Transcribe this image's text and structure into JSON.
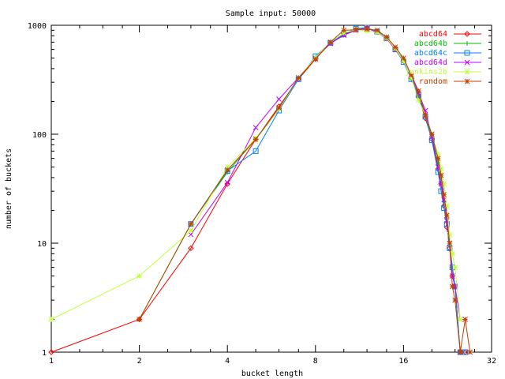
{
  "chart_data": {
    "type": "line",
    "title": "Sample input: 50000",
    "xlabel": "bucket length",
    "ylabel": "number of buckets",
    "x_scale": "log2",
    "y_scale": "log10",
    "xlim": [
      1,
      32
    ],
    "ylim": [
      1,
      1000
    ],
    "x_ticks": [
      1,
      2,
      4,
      8,
      16,
      32
    ],
    "y_ticks": [
      1,
      10,
      100,
      1000
    ],
    "x_tick_labels": [
      "1",
      "2",
      "4",
      "8",
      "16",
      "32"
    ],
    "y_tick_labels": [
      "1",
      "10",
      "100",
      "1000"
    ],
    "grid": false,
    "legend_position": "top-right",
    "series": [
      {
        "name": "abcd64",
        "color": "#ff0000",
        "marker": "diamond",
        "points": [
          [
            1,
            1
          ],
          [
            2,
            2
          ],
          [
            3,
            9
          ],
          [
            4,
            35
          ],
          [
            5,
            90
          ],
          [
            6,
            180
          ],
          [
            7,
            320
          ],
          [
            8,
            490
          ],
          [
            9,
            690
          ],
          [
            10,
            820
          ],
          [
            11,
            910
          ],
          [
            12,
            940
          ],
          [
            13,
            880
          ],
          [
            14,
            760
          ],
          [
            15,
            600
          ],
          [
            16,
            470
          ],
          [
            17,
            330
          ],
          [
            18,
            220
          ],
          [
            19,
            140
          ],
          [
            20,
            90
          ],
          [
            21,
            48
          ],
          [
            21.5,
            35
          ],
          [
            22,
            22
          ],
          [
            22.5,
            14
          ],
          [
            23,
            9
          ],
          [
            23.5,
            5
          ],
          [
            24,
            4
          ],
          [
            25,
            1
          ],
          [
            26,
            1
          ]
        ]
      },
      {
        "name": "abcd64b",
        "color": "#00c000",
        "marker": "plus",
        "points": [
          [
            2,
            2
          ],
          [
            3,
            15
          ],
          [
            4,
            45
          ],
          [
            5,
            90
          ],
          [
            6,
            170
          ],
          [
            7,
            330
          ],
          [
            8,
            500
          ],
          [
            9,
            680
          ],
          [
            10,
            830
          ],
          [
            11,
            920
          ],
          [
            12,
            930
          ],
          [
            13,
            880
          ],
          [
            14,
            750
          ],
          [
            15,
            610
          ],
          [
            16,
            480
          ],
          [
            17,
            320
          ],
          [
            18,
            230
          ],
          [
            19,
            150
          ],
          [
            20,
            95
          ],
          [
            21,
            55
          ],
          [
            21.5,
            40
          ],
          [
            22,
            24
          ],
          [
            22.5,
            17
          ],
          [
            23,
            10
          ],
          [
            23.5,
            6
          ],
          [
            24,
            4
          ],
          [
            25,
            1
          ]
        ]
      },
      {
        "name": "abcd64c",
        "color": "#0080ff",
        "marker": "square",
        "points": [
          [
            3,
            15
          ],
          [
            4,
            46
          ],
          [
            5,
            70
          ],
          [
            6,
            165
          ],
          [
            7,
            320
          ],
          [
            8,
            520
          ],
          [
            9,
            690
          ],
          [
            10,
            830
          ],
          [
            11,
            930
          ],
          [
            12,
            950
          ],
          [
            13,
            870
          ],
          [
            14,
            760
          ],
          [
            15,
            600
          ],
          [
            16,
            460
          ],
          [
            17,
            320
          ],
          [
            18,
            230
          ],
          [
            19,
            145
          ],
          [
            20,
            88
          ],
          [
            21,
            45
          ],
          [
            21.5,
            30
          ],
          [
            22,
            21
          ],
          [
            22.5,
            15
          ],
          [
            23,
            9
          ],
          [
            23.5,
            6
          ],
          [
            24,
            4
          ],
          [
            25,
            1
          ],
          [
            26,
            1
          ]
        ]
      },
      {
        "name": "abcd64d",
        "color": "#c000ff",
        "marker": "x",
        "points": [
          [
            3,
            12
          ],
          [
            4,
            36
          ],
          [
            5,
            115
          ],
          [
            6,
            210
          ],
          [
            7,
            330
          ],
          [
            8,
            500
          ],
          [
            9,
            680
          ],
          [
            10,
            810
          ],
          [
            11,
            900
          ],
          [
            12,
            940
          ],
          [
            13,
            860
          ],
          [
            14,
            750
          ],
          [
            15,
            600
          ],
          [
            16,
            470
          ],
          [
            17,
            340
          ],
          [
            18,
            240
          ],
          [
            19,
            165
          ],
          [
            20,
            95
          ],
          [
            21,
            50
          ],
          [
            21.5,
            35
          ],
          [
            22,
            25
          ],
          [
            22.5,
            16
          ],
          [
            23,
            10
          ],
          [
            23.5,
            5
          ],
          [
            24,
            4
          ],
          [
            25,
            2
          ],
          [
            26,
            2
          ]
        ]
      },
      {
        "name": "jenkins2b",
        "color": "#c0ff40",
        "marker": "star",
        "points": [
          [
            1,
            2
          ],
          [
            2,
            5
          ],
          [
            3,
            13
          ],
          [
            4,
            50
          ],
          [
            5,
            92
          ],
          [
            6,
            170
          ],
          [
            7,
            330
          ],
          [
            8,
            510
          ],
          [
            9,
            700
          ],
          [
            10,
            850
          ],
          [
            11,
            910
          ],
          [
            12,
            890
          ],
          [
            13,
            860
          ],
          [
            14,
            760
          ],
          [
            15,
            610
          ],
          [
            16,
            470
          ],
          [
            17,
            330
          ],
          [
            18,
            205
          ],
          [
            19,
            150
          ],
          [
            20,
            100
          ],
          [
            21,
            65
          ],
          [
            21.5,
            48
          ],
          [
            22,
            35
          ],
          [
            22.5,
            22
          ],
          [
            23,
            12
          ],
          [
            23.5,
            8
          ],
          [
            24,
            6
          ],
          [
            25,
            2
          ]
        ]
      },
      {
        "name": "random",
        "color": "#c04000",
        "marker": "asterisk",
        "points": [
          [
            2,
            2
          ],
          [
            3,
            15
          ],
          [
            4,
            47
          ],
          [
            5,
            90
          ],
          [
            6,
            175
          ],
          [
            7,
            330
          ],
          [
            8,
            490
          ],
          [
            9,
            700
          ],
          [
            10,
            900
          ],
          [
            11,
            910
          ],
          [
            12,
            920
          ],
          [
            13,
            900
          ],
          [
            14,
            780
          ],
          [
            15,
            630
          ],
          [
            16,
            500
          ],
          [
            17,
            350
          ],
          [
            18,
            250
          ],
          [
            19,
            150
          ],
          [
            20,
            100
          ],
          [
            21,
            60
          ],
          [
            21.5,
            42
          ],
          [
            22,
            28
          ],
          [
            22.5,
            18
          ],
          [
            23,
            10
          ],
          [
            23.5,
            4
          ],
          [
            24,
            3
          ],
          [
            25,
            1
          ],
          [
            26,
            2
          ],
          [
            27,
            1
          ]
        ]
      }
    ]
  }
}
